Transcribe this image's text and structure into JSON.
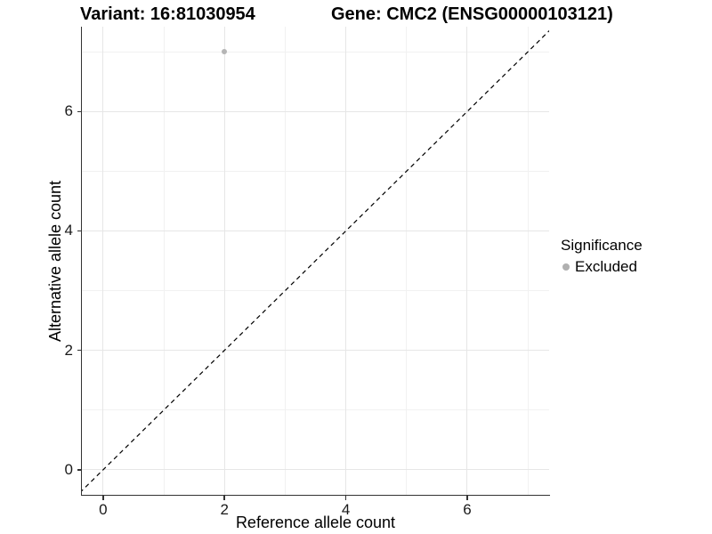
{
  "page": {
    "background": "#ffffff"
  },
  "header": {
    "variant_title": "Variant: 16:81030954",
    "gene_title": "Gene: CMC2 (ENSG00000103121)"
  },
  "chart_data": {
    "type": "scatter",
    "title": "Variant: 16:81030954  Gene: CMC2 (ENSG00000103121)",
    "xlabel": "Reference allele count",
    "ylabel": "Alternative allele count",
    "xlim": [
      -0.35,
      7.35
    ],
    "ylim": [
      -0.42,
      7.42
    ],
    "x_ticks": [
      0,
      2,
      4,
      6
    ],
    "y_ticks": [
      0,
      2,
      4,
      6
    ],
    "x_minor": [
      1,
      3,
      5,
      7
    ],
    "y_minor": [
      1,
      3,
      5,
      7
    ],
    "grid": "major+minor",
    "legend": {
      "title": "Significance",
      "position": "right",
      "items": [
        {
          "label": "Excluded",
          "color": "#b0b0b0",
          "marker": "circle"
        }
      ]
    },
    "series": [
      {
        "name": "Excluded",
        "marker": "circle",
        "color": "#b5b5b5",
        "points": [
          [
            2,
            7
          ]
        ]
      }
    ],
    "identity_line": {
      "style": "dashed",
      "color": "#000000",
      "slope": 1,
      "intercept": 0
    }
  },
  "colors": {
    "background": "#ffffff",
    "grid_major": "#e6e6e6",
    "grid_minor": "#f1f1f1",
    "axis_line": "#333333",
    "tick_text": "#1a1a1a",
    "title_text": "#000000",
    "point": "#b5b5b5",
    "identity_line": "#000000"
  }
}
